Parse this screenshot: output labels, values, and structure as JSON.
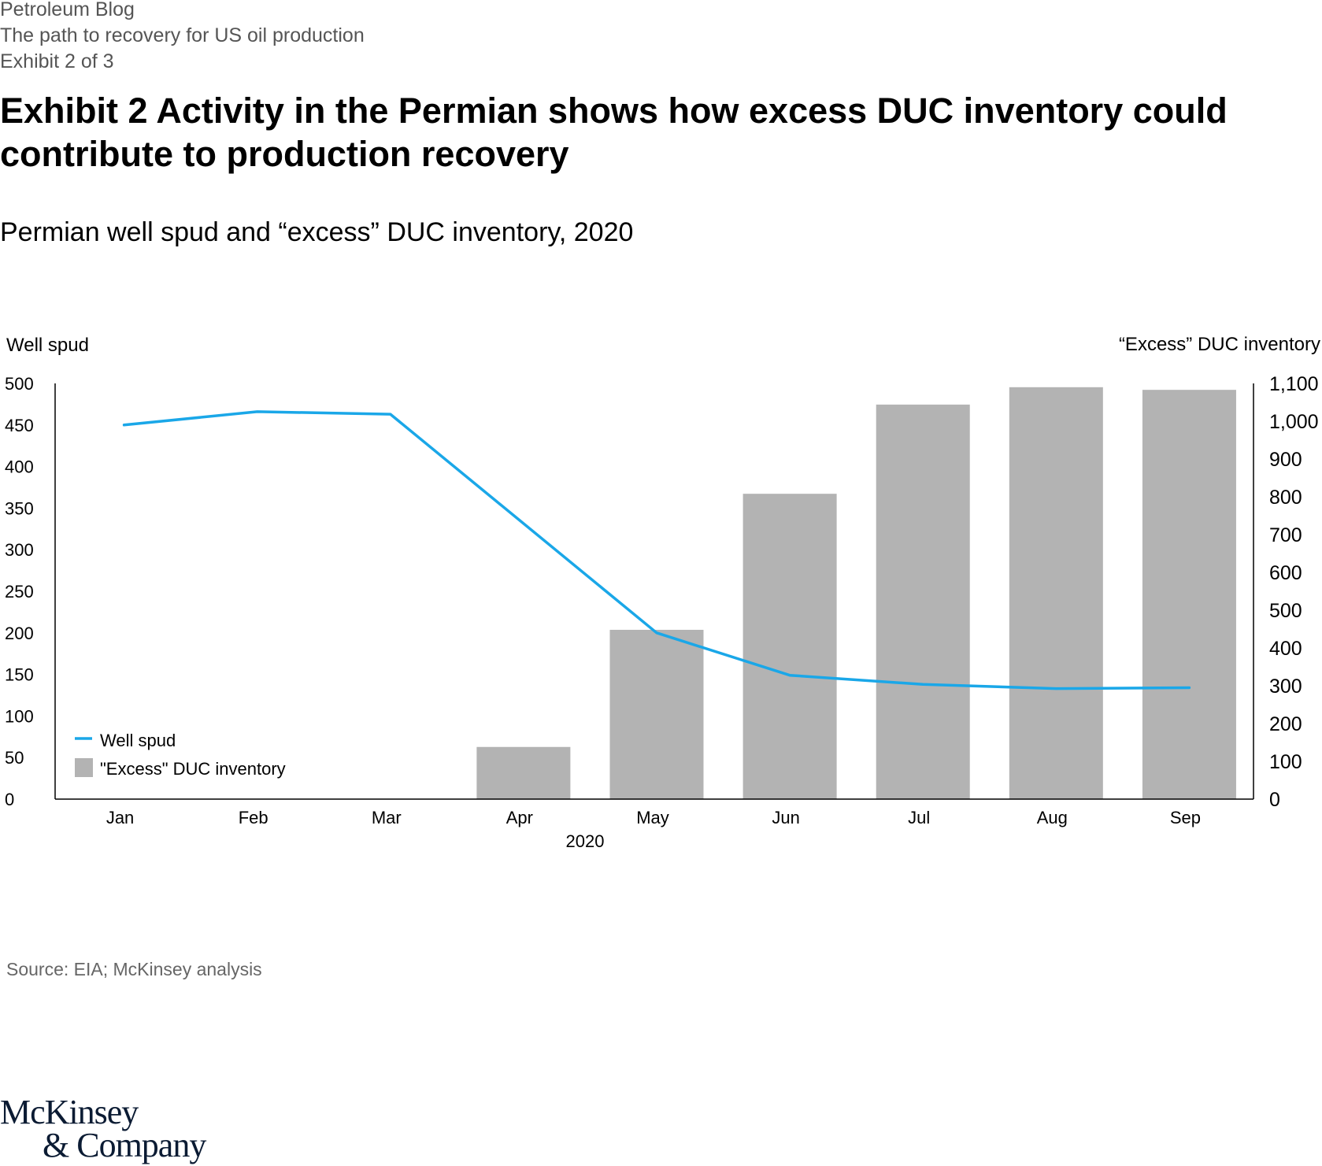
{
  "header": {
    "blog": "Petroleum Blog",
    "article": "The path to recovery for US oil production",
    "exhibit_count": "Exhibit 2 of 3"
  },
  "title": "Exhibit 2  Activity in the Permian shows how excess DUC inventory could contribute to production recovery",
  "subtitle": "Permian well spud and “excess” DUC inventory, 2020",
  "source": "Source: EIA; McKinsey analysis",
  "logo": {
    "line1": "McKinsey",
    "line2": "& Company"
  },
  "colors": {
    "line": "#1aa7e8",
    "bar": "#b3b3b3",
    "axis": "#000000"
  },
  "chart_data": {
    "type": "bar+line",
    "categories": [
      "Jan",
      "Feb",
      "Mar",
      "Apr",
      "May",
      "Jun",
      "Jul",
      "Aug",
      "Sep"
    ],
    "xlabel": "2020",
    "series": [
      {
        "name": "Well spud",
        "type": "line",
        "axis": "left",
        "values": [
          450,
          466,
          463,
          null,
          200,
          149,
          138,
          133,
          134
        ]
      },
      {
        "name": "\"Excess\" DUC inventory",
        "type": "bar",
        "axis": "right",
        "values": [
          0,
          0,
          0,
          138,
          448,
          808,
          1044,
          1090,
          1083
        ]
      }
    ],
    "y_left": {
      "label": "Well spud",
      "lim": [
        0,
        500
      ],
      "ticks": [
        0,
        50,
        100,
        150,
        200,
        250,
        300,
        350,
        400,
        450,
        500
      ]
    },
    "y_right": {
      "label": "“Excess” DUC inventory",
      "lim": [
        0,
        1100
      ],
      "ticks": [
        0,
        100,
        200,
        300,
        400,
        500,
        600,
        700,
        800,
        900,
        1000,
        1100
      ],
      "tick_labels": [
        "0",
        "100",
        "200",
        "300",
        "400",
        "500",
        "600",
        "700",
        "800",
        "900",
        "1,000",
        "1,100"
      ]
    },
    "legend": {
      "position": "bottom-left",
      "entries": [
        "Well spud",
        "\"Excess\" DUC inventory"
      ]
    }
  }
}
